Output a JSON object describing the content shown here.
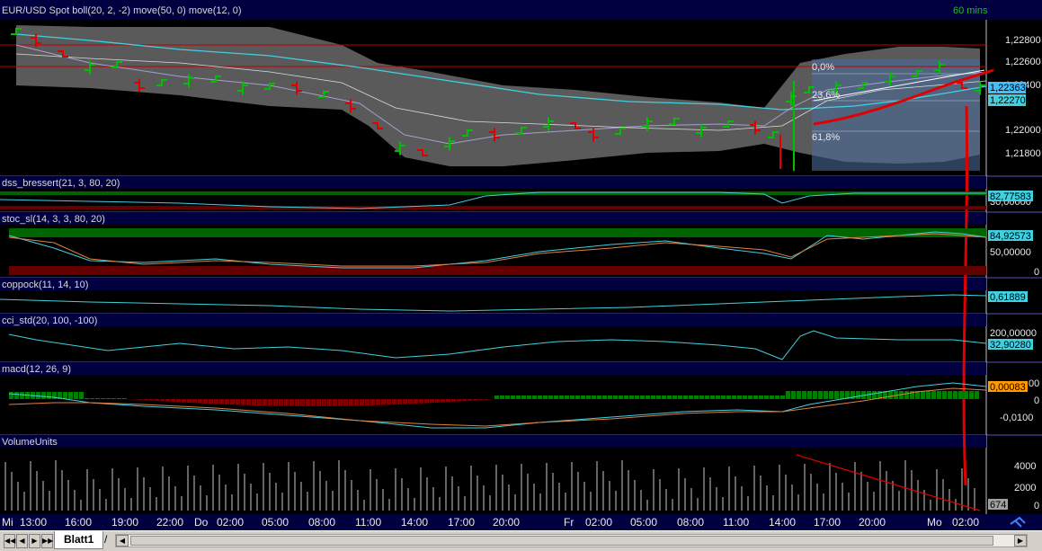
{
  "timeframe": "60 mins",
  "panes": {
    "price": {
      "title": "EUR/USD Spot boll(20, 2, -2) move(50, 0) move(12, 0)",
      "ticks": [
        "1,22800",
        "1,22600",
        "1,22400",
        "1,22000",
        "1,21800"
      ],
      "tag_upper": "1,22363",
      "tag_lower": "1,22270",
      "fib": [
        "0,0%",
        "23,6%",
        "61,8%"
      ]
    },
    "dss": {
      "title": "dss_bressert(21, 3, 80, 20)",
      "tag": "82,77583",
      "tick": "30,00000"
    },
    "stoc": {
      "title": "stoc_sl(14, 3, 3, 80, 20)",
      "tag": "84,92573",
      "ticks": [
        "50,00000",
        "0"
      ]
    },
    "coppock": {
      "title": "coppock(11, 14, 10)",
      "tag": "0,61889"
    },
    "cci": {
      "title": "cci_std(20, 100, -100)",
      "tag": "32,90280",
      "tick": "200,00000"
    },
    "macd": {
      "title": "macd(12, 26, 9)",
      "tag": "0,00083",
      "ticks": [
        "00",
        "0",
        "-0,0100"
      ]
    },
    "volume": {
      "title": "VolumeUnits",
      "tag": "674",
      "ticks": [
        "4000",
        "2000",
        "0"
      ]
    }
  },
  "time_axis": [
    "Mi",
    "13:00",
    "16:00",
    "19:00",
    "22:00",
    "Do",
    "02:00",
    "05:00",
    "08:00",
    "11:00",
    "14:00",
    "17:00",
    "20:00",
    "Fr",
    "02:00",
    "05:00",
    "08:00",
    "11:00",
    "14:00",
    "17:00",
    "20:00",
    "Mo",
    "02:00"
  ],
  "sheet_tab": "Blatt1",
  "nav": [
    "◀◀",
    "◀",
    "▶",
    "▶▶"
  ],
  "colors": {
    "bull": "#00c000",
    "bear": "#e00000",
    "band": "#8a8a8a",
    "ma50": "#40d0e0",
    "ma12": "#a0a0d0",
    "hline": "#c00000",
    "axis": "#000040"
  }
}
